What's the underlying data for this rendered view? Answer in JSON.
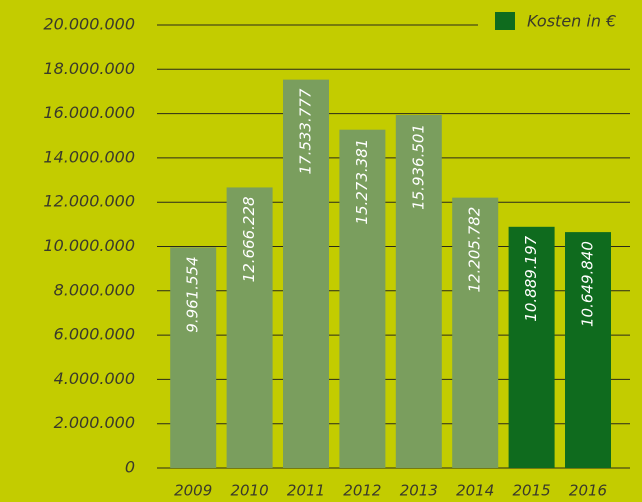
{
  "chart_data": {
    "type": "bar",
    "categories": [
      "2009",
      "2010",
      "2011",
      "2012",
      "2013",
      "2014",
      "2015",
      "2016"
    ],
    "series": [
      {
        "name": "Kosten in €",
        "color": "#0f6b1e",
        "colors": [
          "#7a9e5e",
          "#7a9e5e",
          "#7a9e5e",
          "#7a9e5e",
          "#7a9e5e",
          "#7a9e5e",
          "#0f6b1e",
          "#0f6b1e"
        ],
        "values": [
          9961554,
          12666228,
          17533777,
          15273381,
          15936501,
          12205782,
          10889197,
          10649840
        ],
        "value_labels": [
          "9.961.554",
          "12.666.228",
          "17.533.777",
          "15.273.381",
          "15.936.501",
          "12.205.782",
          "10.889.197",
          "10.649.840"
        ]
      }
    ],
    "ylim": [
      0,
      20000000
    ],
    "yticks": [
      0,
      {
        "value": 2000000,
        "label": "2.000.000"
      },
      {
        "value": 4000000,
        "label": "4.000.000"
      },
      {
        "value": 6000000,
        "label": "6.000.000"
      },
      {
        "value": 8000000,
        "label": "8.000.000"
      },
      {
        "value": 10000000,
        "label": "10.000.000"
      },
      {
        "value": 12000000,
        "label": "12.000.000"
      },
      {
        "value": 14000000,
        "label": "14.000.000"
      },
      {
        "value": 16000000,
        "label": "16.000.000"
      },
      {
        "value": 18000000,
        "label": "18.000.000"
      },
      {
        "value": 20000000,
        "label": "20.000.000"
      }
    ],
    "grid": true,
    "legend": "top-right"
  }
}
